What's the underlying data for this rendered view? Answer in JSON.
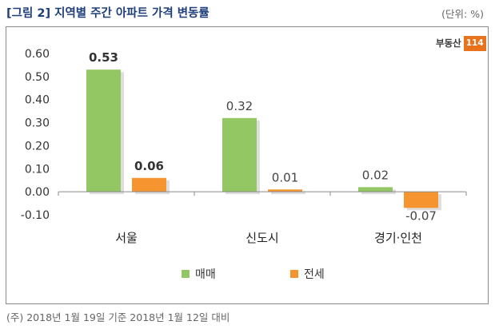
{
  "header": {
    "title": "[그림 2] 지역별 주간 아파트 가격 변동률",
    "unit": "(단위: %)"
  },
  "logo": {
    "text": "부동산",
    "number": "114"
  },
  "footer": {
    "source": "(주) 2018년 1월 19일 기준 2018년 1월 12일 대비"
  },
  "colors": {
    "sale": "#93c764",
    "jeonse": "#f6952f"
  },
  "chart_data": {
    "type": "bar",
    "categories": [
      "서울",
      "신도시",
      "경기·인천"
    ],
    "series": [
      {
        "name": "매매",
        "values": [
          0.53,
          0.32,
          0.02
        ],
        "labels": [
          "0.53",
          "0.32",
          "0.02"
        ]
      },
      {
        "name": "전세",
        "values": [
          0.06,
          0.01,
          -0.07
        ],
        "labels": [
          "0.06",
          "0.01",
          "-0.07"
        ]
      }
    ],
    "ylim": [
      -0.1,
      0.6
    ],
    "yticks": [
      "0.60",
      "0.50",
      "0.40",
      "0.30",
      "0.20",
      "0.10",
      "0.00",
      "-0.10"
    ],
    "ytick_values": [
      0.6,
      0.5,
      0.4,
      0.3,
      0.2,
      0.1,
      0.0,
      -0.1
    ],
    "bold_labels": [
      "0.53",
      "0.06"
    ],
    "legend_position": "bottom",
    "grid": false
  }
}
